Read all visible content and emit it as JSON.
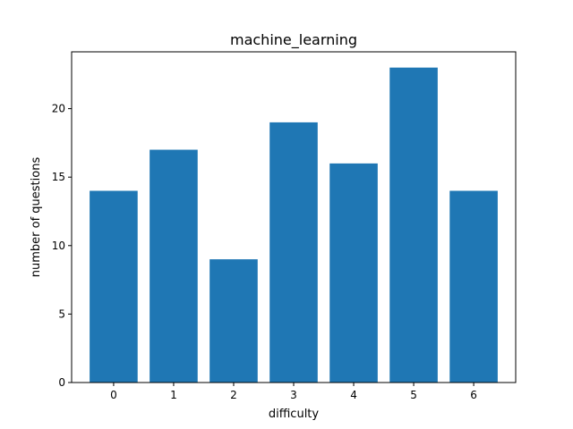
{
  "chart_data": {
    "type": "bar",
    "title": "machine_learning",
    "xlabel": "difficulty",
    "ylabel": "number of questions",
    "categories": [
      "0",
      "1",
      "2",
      "3",
      "4",
      "5",
      "6"
    ],
    "values": [
      14,
      17,
      9,
      19,
      16,
      23,
      14
    ],
    "ylim": [
      0,
      24.15
    ],
    "xlim": [
      -0.7,
      6.7
    ],
    "yticks": [
      0,
      5,
      10,
      15,
      20
    ],
    "grid": false,
    "legend": "none",
    "bar_color": "#1f77b4"
  }
}
